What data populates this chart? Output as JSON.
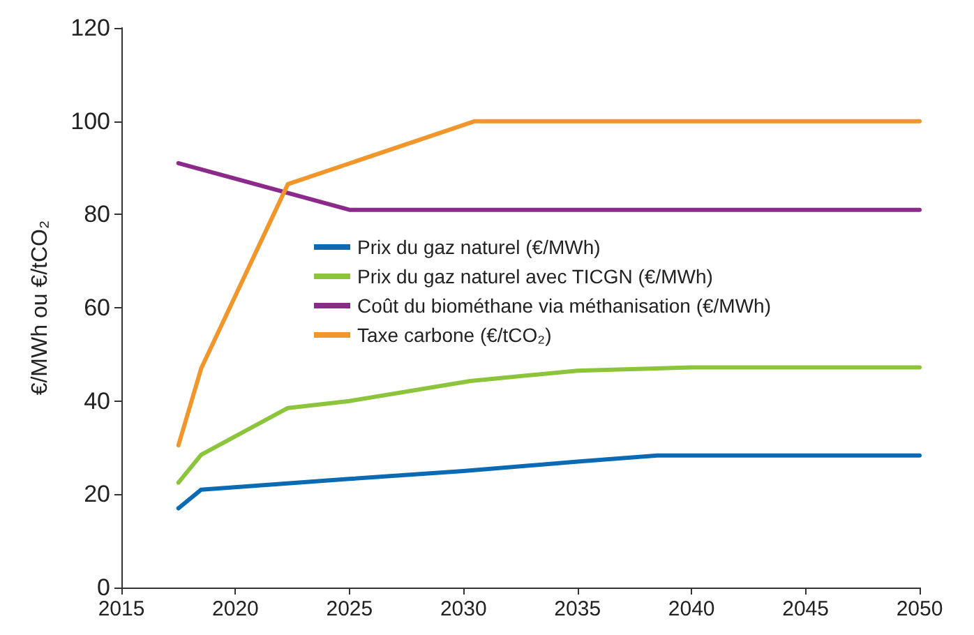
{
  "chart_data": {
    "type": "line",
    "ylabel": "€/MWh ou €/tCO₂",
    "xlim": [
      2015,
      2050
    ],
    "xticks": [
      2015,
      2020,
      2025,
      2030,
      2035,
      2040,
      2045,
      2050
    ],
    "ylim": [
      0,
      120
    ],
    "yticks": [
      0,
      20,
      40,
      60,
      80,
      100,
      120
    ],
    "grid": false,
    "legend": "right",
    "marker": "none",
    "line_style": "solid",
    "series": [
      {
        "name": "Prix du gaz naturel (€/MWh)",
        "color": "#0a6ab4",
        "x": [
          2017.5,
          2018.5,
          2025,
          2030,
          2035,
          2038.5,
          2050
        ],
        "values": [
          17,
          21,
          23.3,
          25,
          27,
          28.3,
          28.3
        ]
      },
      {
        "name": "Prix du gaz naturel avec TICGN (€/MWh)",
        "color": "#8cc43c",
        "x": [
          2017.5,
          2018.5,
          2022.3,
          2025,
          2030.3,
          2035,
          2040,
          2050
        ],
        "values": [
          22.5,
          28.5,
          38.5,
          40,
          44.3,
          46.5,
          47.2,
          47.2
        ]
      },
      {
        "name": "Coût du biométhane via méthanisation (€/MWh)",
        "color": "#8c2a8c",
        "x": [
          2017.5,
          2025,
          2050
        ],
        "values": [
          91,
          81,
          81
        ]
      },
      {
        "name": "Taxe carbone (€/tCO₂)",
        "color": "#f0962a",
        "x": [
          2017.5,
          2018.5,
          2022.3,
          2030.5,
          2050
        ],
        "values": [
          30.5,
          47,
          86.5,
          100,
          100
        ]
      }
    ]
  }
}
